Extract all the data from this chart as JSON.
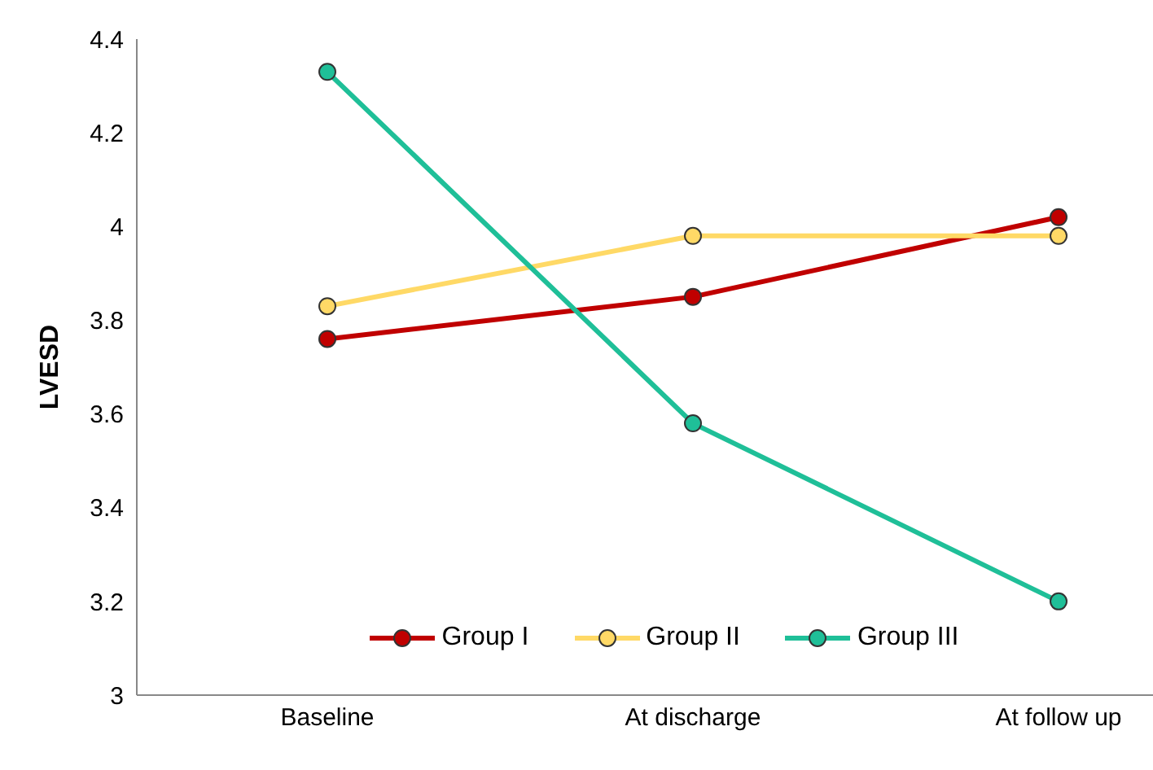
{
  "chart_data": {
    "type": "line",
    "ylabel": "LVESD",
    "categories": [
      "Baseline",
      "At discharge",
      "At follow up"
    ],
    "series": [
      {
        "name": "Group I",
        "color": "#c00000",
        "values": [
          3.76,
          3.85,
          4.02
        ]
      },
      {
        "name": "Group II",
        "color": "#ffd966",
        "values": [
          3.83,
          3.98,
          3.98
        ]
      },
      {
        "name": "Group III",
        "color": "#1fbf98",
        "values": [
          4.33,
          3.58,
          3.2
        ]
      }
    ],
    "ylim": [
      3,
      4.4
    ],
    "yticks": [
      3,
      3.2,
      3.4,
      3.6,
      3.8,
      4,
      4.2,
      4.4
    ],
    "grid": false,
    "legend": "bottom",
    "marker": "circle",
    "line_style": "solid"
  }
}
